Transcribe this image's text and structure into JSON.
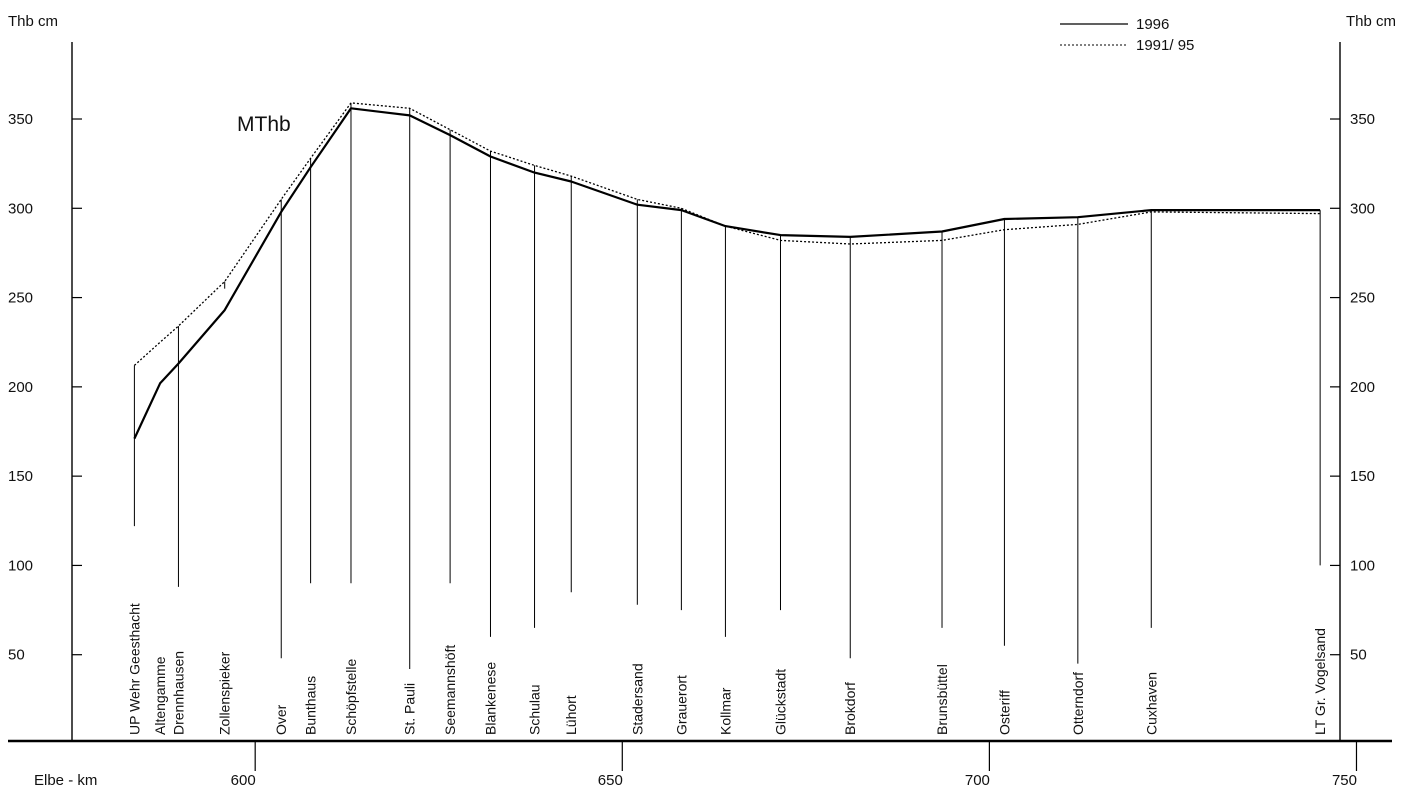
{
  "chart_data": {
    "type": "line",
    "title": "",
    "annotation": "MThb",
    "ylabel_left": "Thb cm",
    "ylabel_right": "Thb cm",
    "xlabel": "Elbe - km",
    "xlim": [
      581,
      756
    ],
    "ylim": [
      0,
      400
    ],
    "y_ticks": [
      50,
      100,
      150,
      200,
      250,
      300,
      350
    ],
    "x_ticks": [
      600,
      650,
      700,
      750
    ],
    "grid": false,
    "legend_position": "top-right",
    "stations": [
      {
        "name": "UP Wehr Geesthacht",
        "km": 586.0,
        "label_top": 122
      },
      {
        "name": "Altengamme",
        "km": 589.5,
        "label_top": 225
      },
      {
        "name": "Drennhausen",
        "km": 592.0,
        "label_top": 88
      },
      {
        "name": "Zollenspieker",
        "km": 598.3,
        "label_top": 255
      },
      {
        "name": "Over",
        "km": 606.0,
        "label_top": 48
      },
      {
        "name": "Bunthaus",
        "km": 610.0,
        "label_top": 90
      },
      {
        "name": "Schöpfstelle",
        "km": 615.5,
        "label_top": 90
      },
      {
        "name": "St. Pauli",
        "km": 623.5,
        "label_top": 42
      },
      {
        "name": "Seemannshöft",
        "km": 629.0,
        "label_top": 90
      },
      {
        "name": "Blankenese",
        "km": 634.5,
        "label_top": 60
      },
      {
        "name": "Schulau",
        "km": 640.5,
        "label_top": 65
      },
      {
        "name": "Lühort",
        "km": 645.5,
        "label_top": 85
      },
      {
        "name": "Stadersand",
        "km": 654.5,
        "label_top": 78
      },
      {
        "name": "Grauerort",
        "km": 660.5,
        "label_top": 75
      },
      {
        "name": "Kollmar",
        "km": 666.5,
        "label_top": 60
      },
      {
        "name": "Glückstadt",
        "km": 674.0,
        "label_top": 75
      },
      {
        "name": "Brokdorf",
        "km": 683.5,
        "label_top": 48
      },
      {
        "name": "Brunsbüttel",
        "km": 696.0,
        "label_top": 65
      },
      {
        "name": "Osteriff",
        "km": 704.5,
        "label_top": 55
      },
      {
        "name": "Otterndorf",
        "km": 714.5,
        "label_top": 45
      },
      {
        "name": "Cuxhaven",
        "km": 724.5,
        "label_top": 65
      },
      {
        "name": "LT Gr. Vogelsand",
        "km": 747.5,
        "label_top": 100
      }
    ],
    "series": [
      {
        "name": "1996",
        "style": "solid",
        "x": [
          586.0,
          589.5,
          592.0,
          598.3,
          606.0,
          610.0,
          615.5,
          623.5,
          629.0,
          634.5,
          640.5,
          645.5,
          654.5,
          660.5,
          666.5,
          674.0,
          683.5,
          696.0,
          704.5,
          714.5,
          724.5,
          747.5
        ],
        "values": [
          171,
          202,
          213,
          243,
          298,
          323,
          356,
          352,
          341,
          329,
          320,
          315,
          302,
          299,
          290,
          285,
          284,
          287,
          294,
          295,
          299,
          299
        ]
      },
      {
        "name": "1991/ 95",
        "style": "dotted",
        "x": [
          586.0,
          589.5,
          592.0,
          598.3,
          606.0,
          610.0,
          615.5,
          623.5,
          629.0,
          634.5,
          640.5,
          645.5,
          654.5,
          660.5,
          666.5,
          674.0,
          683.5,
          696.0,
          704.5,
          714.5,
          724.5,
          747.5
        ],
        "values": [
          212,
          225,
          234,
          259,
          305,
          328,
          359,
          356,
          344,
          332,
          324,
          318,
          305,
          300,
          290,
          282,
          280,
          282,
          288,
          291,
          298,
          297
        ]
      }
    ]
  }
}
